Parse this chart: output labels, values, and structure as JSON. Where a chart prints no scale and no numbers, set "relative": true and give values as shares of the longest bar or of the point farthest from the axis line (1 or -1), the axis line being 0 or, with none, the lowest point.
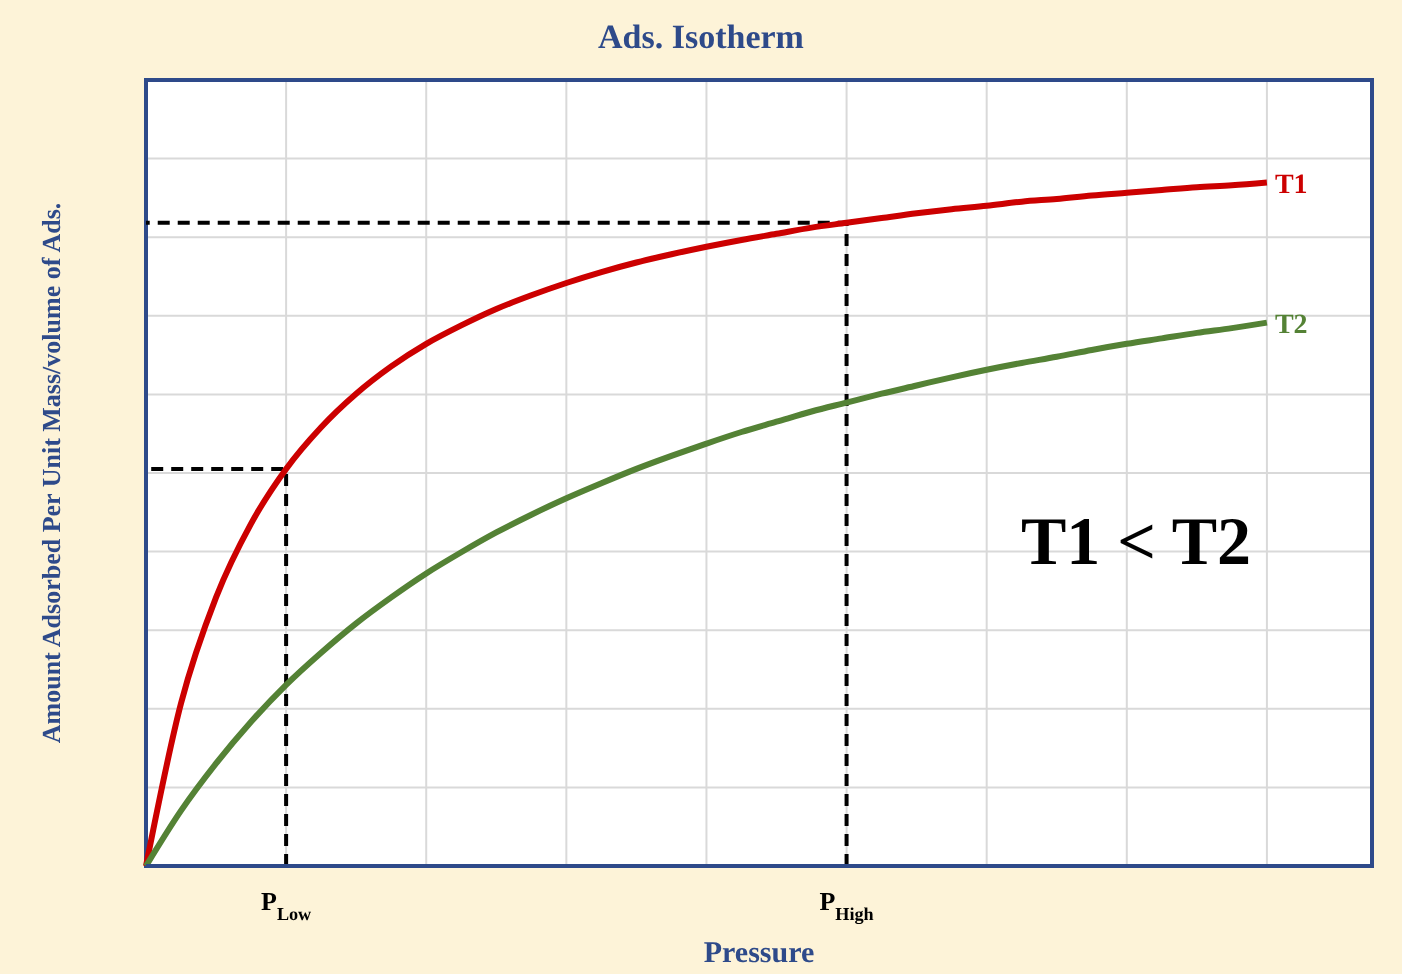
{
  "chart_data": {
    "type": "line",
    "title": "Ads. Isotherm",
    "xlabel": "Pressure",
    "ylabel": "Amount Adsorbed Per Unit Mass/volume of Ads.",
    "relative": true,
    "grid": true,
    "legend": false,
    "marker": "none",
    "line_style": "solid",
    "categories": [
      null,
      null,
      null,
      null,
      "P$_{Low}$",
      null,
      null,
      null,
      null,
      null,
      null,
      null,
      null,
      null,
      null,
      null,
      null,
      null,
      null,
      null,
      "P$_{High}$",
      null,
      null,
      null,
      null,
      null,
      null,
      null,
      null,
      null,
      null,
      null,
      null,
      null,
      null,
      null
    ],
    "series": [
      {
        "name": "T1",
        "color": "#cc0000",
        "values": [
          0,
          0.238,
          0.393,
          0.501,
          0.581,
          0.642,
          0.691,
          0.731,
          0.764,
          0.791,
          0.815,
          0.835,
          0.853,
          0.869,
          0.883,
          0.895,
          0.906,
          0.916,
          0.925,
          0.934,
          0.941,
          0.948,
          0.955,
          0.961,
          0.966,
          0.972,
          0.976,
          0.981,
          0.985,
          0.989,
          0.993,
          0.996,
          1,
          null,
          null,
          null
        ]
      },
      {
        "name": "T2",
        "color": "#548235",
        "values": [
          0,
          0.081,
          0.15,
          0.211,
          0.265,
          0.312,
          0.355,
          0.393,
          0.428,
          0.459,
          0.488,
          0.514,
          0.538,
          0.56,
          0.581,
          0.6,
          0.618,
          0.635,
          0.65,
          0.665,
          0.678,
          0.691,
          0.703,
          0.715,
          0.726,
          0.736,
          0.745,
          0.755,
          0.764,
          0.772,
          0.78,
          0.787,
          0.795,
          null,
          null,
          null
        ]
      }
    ],
    "ref_lines": [
      {
        "axis": "x",
        "value": "P$_{Low}$",
        "line_style": "dashed",
        "color": "#000000"
      },
      {
        "axis": "x",
        "value": "P$_{High}$",
        "line_style": "dashed",
        "color": "#000000"
      }
    ],
    "annotations": [
      "T1 < T2"
    ]
  }
}
